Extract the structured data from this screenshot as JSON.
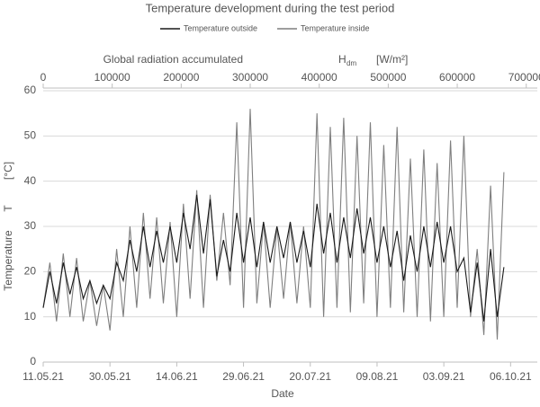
{
  "chart_data": {
    "type": "line",
    "title": "Temperature development during the test period",
    "x_label": "Date",
    "y_label": "Temperature",
    "y_symbol": "T",
    "y_unit": "[°C]",
    "x2_label": "Global radiation accumulated",
    "x2_symbol": "H",
    "x2_symbol_sub": "dm",
    "x2_unit": "[W/m²]",
    "x": [
      0,
      10,
      20,
      30,
      40,
      50,
      60,
      70,
      80,
      90,
      100,
      110,
      120,
      130,
      140,
      150,
      160,
      170,
      180,
      190,
      200,
      210,
      220,
      230,
      240,
      250,
      260,
      270,
      280,
      290,
      300,
      310,
      320,
      330,
      340,
      350,
      360,
      370,
      380,
      390,
      400,
      410,
      420,
      430,
      440,
      450,
      460,
      470,
      480,
      490,
      500,
      510,
      520,
      530,
      540,
      550,
      560,
      570,
      580,
      590,
      600,
      610,
      620,
      630,
      640,
      650,
      660,
      670,
      680,
      690
    ],
    "series": [
      {
        "name": "Temperature inside",
        "color": "#7f7f7f",
        "values": [
          12,
          22,
          9,
          24,
          10,
          23,
          9,
          18,
          8,
          17,
          7,
          25,
          10,
          30,
          12,
          33,
          14,
          32,
          13,
          31,
          10,
          35,
          14,
          38,
          12,
          37,
          18,
          33,
          17,
          53,
          12,
          56,
          13,
          31,
          12,
          30,
          14,
          31,
          13,
          30,
          12,
          55,
          10,
          52,
          12,
          54,
          11,
          50,
          13,
          53,
          10,
          48,
          12,
          52,
          11,
          45,
          10,
          47,
          9,
          44,
          10,
          49,
          12,
          50,
          10,
          25,
          6,
          39,
          5,
          42
        ]
      },
      {
        "name": "Temperature outside",
        "color": "#1a1a1a",
        "values": [
          12,
          20,
          13,
          22,
          15,
          21,
          14,
          18,
          13,
          17,
          14,
          22,
          18,
          27,
          20,
          30,
          21,
          29,
          22,
          30,
          22,
          33,
          25,
          37,
          24,
          36,
          19,
          27,
          20,
          33,
          22,
          32,
          21,
          31,
          22,
          30,
          23,
          31,
          22,
          29,
          21,
          35,
          24,
          33,
          22,
          32,
          23,
          34,
          24,
          32,
          22,
          30,
          21,
          29,
          18,
          28,
          20,
          30,
          21,
          31,
          22,
          30,
          20,
          23,
          11,
          22,
          9,
          25,
          10,
          21
        ]
      }
    ],
    "xlim": [
      0,
      740
    ],
    "xticks": [
      {
        "value": 0,
        "label": "11.05.21"
      },
      {
        "value": 100,
        "label": "30.05.21"
      },
      {
        "value": 200,
        "label": "14.06.21"
      },
      {
        "value": 300,
        "label": "29.06.21"
      },
      {
        "value": 400,
        "label": "20.07.21"
      },
      {
        "value": 500,
        "label": "09.08.21"
      },
      {
        "value": 600,
        "label": "03.09.21"
      },
      {
        "value": 700,
        "label": "06.10.21"
      }
    ],
    "x2lim": [
      0,
      716000
    ],
    "x2ticks": [
      0,
      100000,
      200000,
      300000,
      400000,
      500000,
      600000,
      700000
    ],
    "ylim": [
      0,
      60
    ],
    "yticks": [
      0,
      10,
      20,
      30,
      40,
      50,
      60
    ],
    "grid": true
  }
}
